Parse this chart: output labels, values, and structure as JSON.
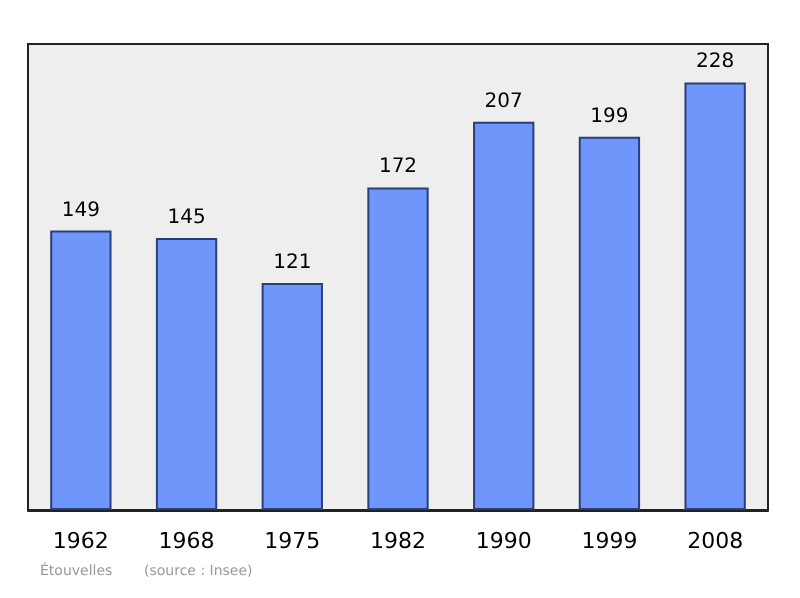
{
  "chart_data": {
    "type": "bar",
    "categories": [
      "1962",
      "1968",
      "1975",
      "1982",
      "1990",
      "1999",
      "2008"
    ],
    "values": [
      149,
      145,
      121,
      172,
      207,
      199,
      228
    ],
    "color": "#6f96fb",
    "data_labels": true,
    "annotations": [
      "Étouvelles",
      "(source : Insee)"
    ]
  }
}
